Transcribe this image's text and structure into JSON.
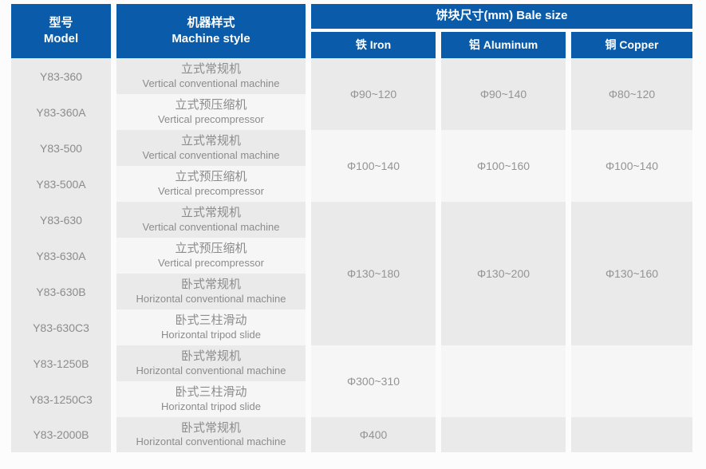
{
  "colors": {
    "header_blue": "#0a5caa",
    "stripe_dark": "#eaeaea",
    "stripe_light": "#f6f6f6",
    "text_gray": "#8c8c8c",
    "value_gray": "#949494",
    "header_text": "#ffffff",
    "page_bg": "#fcfcfc"
  },
  "table": {
    "headers": {
      "model_zh": "型号",
      "model_en": "Model",
      "machine_zh": "机器样式",
      "machine_en": "Machine style",
      "bale_size": "饼块尺寸(mm) Bale size",
      "iron": "铁 Iron",
      "aluminum": "铝 Aluminum",
      "copper": "铜 Copper"
    },
    "rows": [
      {
        "model": "Y83-360",
        "style_zh": "立式常规机",
        "style_en": "Vertical conventional machine"
      },
      {
        "model": "Y83-360A",
        "style_zh": "立式预压缩机",
        "style_en": "Vertical precompressor"
      },
      {
        "model": "Y83-500",
        "style_zh": "立式常规机",
        "style_en": "Vertical conventional machine"
      },
      {
        "model": "Y83-500A",
        "style_zh": "立式预压缩机",
        "style_en": "Vertical precompressor"
      },
      {
        "model": "Y83-630",
        "style_zh": "立式常规机",
        "style_en": "Vertical conventional machine"
      },
      {
        "model": "Y83-630A",
        "style_zh": "立式预压缩机",
        "style_en": "Vertical precompressor"
      },
      {
        "model": "Y83-630B",
        "style_zh": "卧式常规机",
        "style_en": "Horizontal conventional machine"
      },
      {
        "model": "Y83-630C3",
        "style_zh": "卧式三柱滑动",
        "style_en": "Horizontal tripod slide"
      },
      {
        "model": "Y83-1250B",
        "style_zh": "卧式常规机",
        "style_en": "Horizontal conventional machine"
      },
      {
        "model": "Y83-1250C3",
        "style_zh": "卧式三柱滑动",
        "style_en": "Horizontal tripod slide"
      },
      {
        "model": "Y83-2000B",
        "style_zh": "卧式常规机",
        "style_en": "Horizontal conventional machine"
      }
    ],
    "size_groups": [
      {
        "iron": "Φ90~120",
        "aluminum": "Φ90~140",
        "copper": "Φ80~120"
      },
      {
        "iron": "Φ100~140",
        "aluminum": "Φ100~160",
        "copper": "Φ100~140"
      },
      {
        "iron": "Φ130~180",
        "aluminum": "Φ130~200",
        "copper": "Φ130~160"
      },
      {
        "iron": "Φ300~310",
        "aluminum": "",
        "copper": ""
      },
      {
        "iron": "Φ400",
        "aluminum": "",
        "copper": ""
      }
    ]
  }
}
